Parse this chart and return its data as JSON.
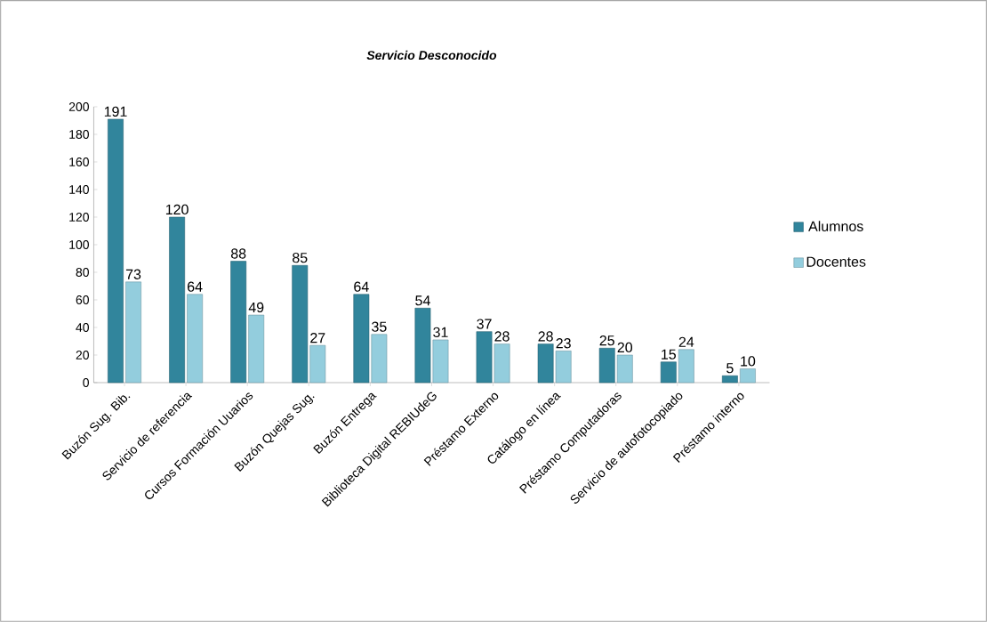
{
  "chart_data": {
    "type": "bar",
    "title": "Servicio Desconocido",
    "categories": [
      "Buzón Sug. Bib.",
      "Servicio de referencia",
      "Cursos Formación Uuarios",
      "Buzón Quejas Sug.",
      "Buzón Entrega",
      "Biblioteca Digital REBIUdeG",
      "Préstamo Externo",
      "Catálogo en línea",
      "Préstamo Computadoras",
      "Servicio de autofotocopiado",
      "Préstamo interno"
    ],
    "series": [
      {
        "name": "Alumnos",
        "color": "#31859c",
        "values": [
          191,
          120,
          88,
          85,
          64,
          54,
          37,
          28,
          25,
          15,
          5
        ]
      },
      {
        "name": "Docentes",
        "color": "#93cddd",
        "values": [
          73,
          64,
          49,
          27,
          35,
          31,
          28,
          23,
          20,
          24,
          10
        ]
      }
    ],
    "ylim": [
      0,
      200
    ],
    "yticks": [
      0,
      20,
      40,
      60,
      80,
      100,
      120,
      140,
      160,
      180,
      200
    ],
    "data_labels": true,
    "legend": "right"
  }
}
